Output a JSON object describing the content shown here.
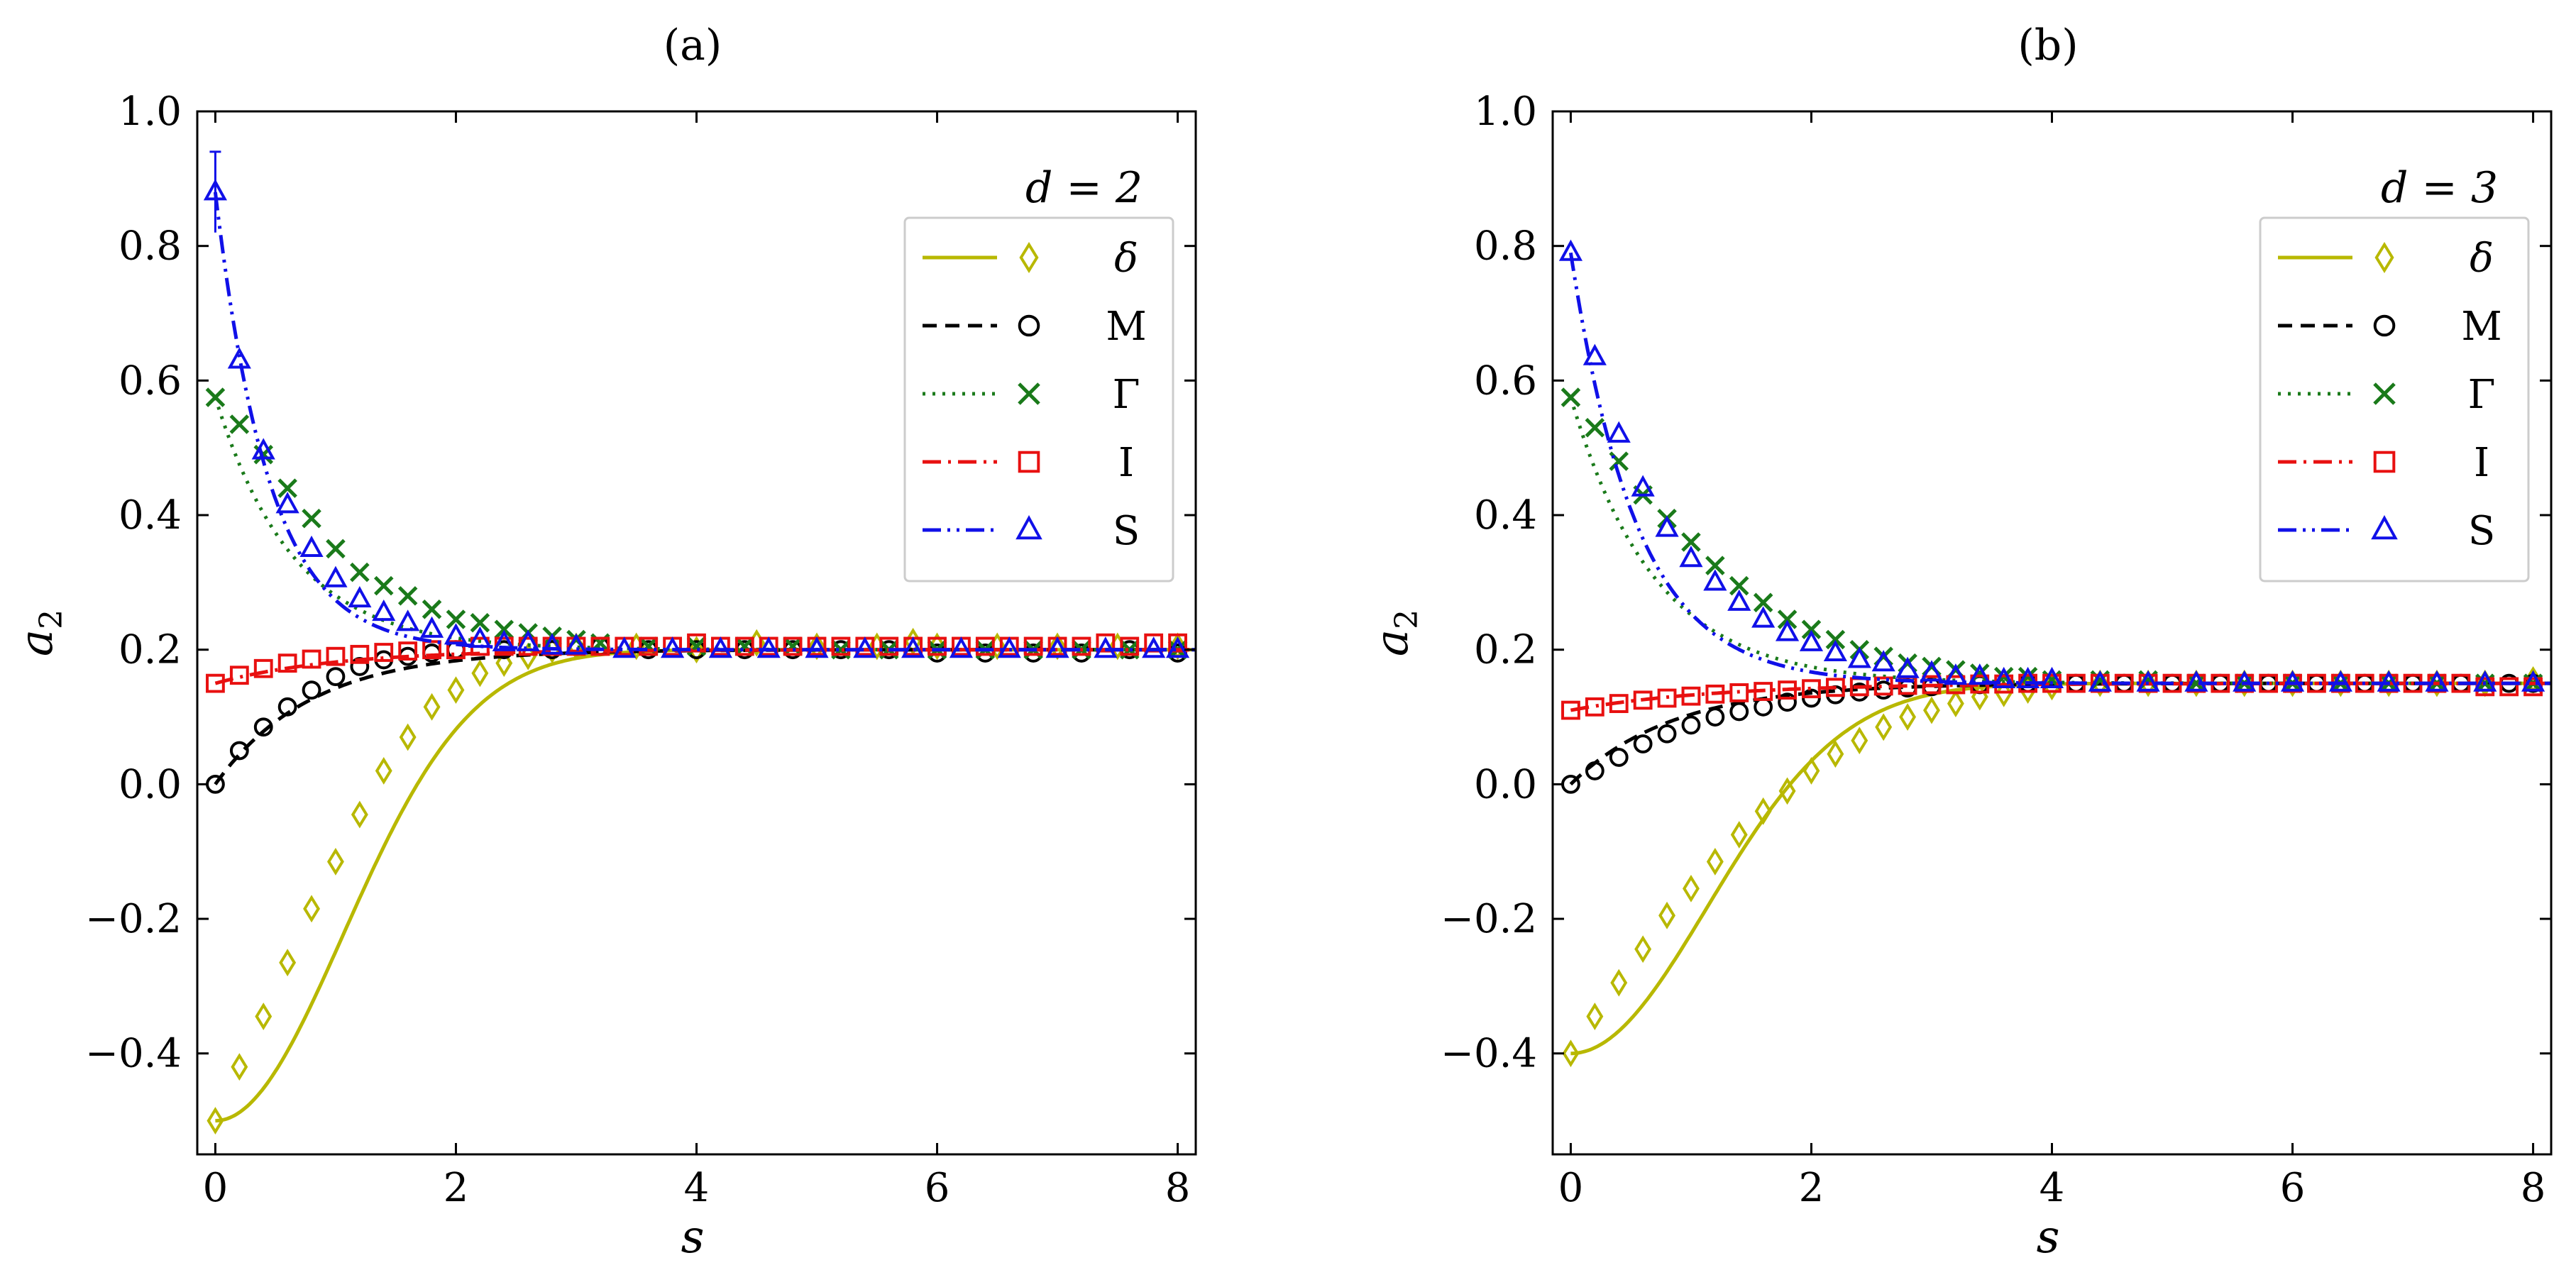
{
  "chart_data": [
    {
      "type": "line",
      "panel_label": "(a)",
      "xlabel": "s",
      "ylabel": "a2",
      "xlim": [
        -0.15,
        8.15
      ],
      "ylim": [
        -0.55,
        1.0
      ],
      "xticks": [
        "0",
        "2",
        "4",
        "6",
        "8"
      ],
      "yticks": [
        "−0.4",
        "−0.2",
        "0.0",
        "0.2",
        "0.4",
        "0.6",
        "0.8",
        "1.0"
      ],
      "legend": {
        "title": "d = 2",
        "position": "top-right"
      },
      "asymptote": 0.2,
      "series": [
        {
          "name": "δ",
          "color": "#b8b800",
          "line": "solid",
          "marker": "diamond",
          "curve": {
            "a0": -0.5,
            "kind": "gauss",
            "tau": 1.5
          },
          "x": [
            0,
            0.2,
            0.4,
            0.6,
            0.8,
            1.0,
            1.2,
            1.4,
            1.6,
            1.8,
            2.0,
            2.2,
            2.4,
            2.6,
            2.8,
            3.0,
            3.5,
            4.0,
            4.5,
            5.0,
            5.5,
            5.8,
            6.0,
            6.5,
            7.0,
            7.5,
            8.0
          ],
          "y": [
            -0.5,
            -0.42,
            -0.345,
            -0.265,
            -0.185,
            -0.115,
            -0.045,
            0.02,
            0.07,
            0.115,
            0.14,
            0.165,
            0.18,
            0.19,
            0.2,
            0.205,
            0.205,
            0.2,
            0.21,
            0.205,
            0.205,
            0.212,
            0.205,
            0.205,
            0.205,
            0.205,
            0.205
          ]
        },
        {
          "name": "M",
          "color": "#000000",
          "line": "dashed",
          "marker": "circle",
          "curve": {
            "a0": 0.0,
            "kind": "exp",
            "tau": 0.8
          },
          "x": [
            0,
            0.2,
            0.4,
            0.6,
            0.8,
            1.0,
            1.2,
            1.4,
            1.6,
            1.8,
            2.0,
            2.4,
            2.8,
            3.2,
            3.6,
            4.0,
            4.4,
            4.8,
            5.2,
            5.6,
            6.0,
            6.4,
            6.8,
            7.2,
            7.6,
            8.0
          ],
          "y": [
            0.0,
            0.05,
            0.085,
            0.115,
            0.14,
            0.16,
            0.175,
            0.185,
            0.19,
            0.195,
            0.2,
            0.2,
            0.2,
            0.205,
            0.2,
            0.2,
            0.2,
            0.2,
            0.2,
            0.2,
            0.195,
            0.195,
            0.195,
            0.195,
            0.2,
            0.195
          ]
        },
        {
          "name": "Γ",
          "color": "#1a7a1a",
          "line": "dotted",
          "marker": "x",
          "curve": {
            "a0": 0.575,
            "kind": "exp",
            "tau": 0.65
          },
          "x": [
            0,
            0.2,
            0.4,
            0.6,
            0.8,
            1.0,
            1.2,
            1.4,
            1.6,
            1.8,
            2.0,
            2.2,
            2.4,
            2.6,
            2.8,
            3.0,
            3.2,
            3.6,
            4.0,
            4.4,
            4.8,
            5.2,
            5.6,
            6.0,
            6.4,
            6.8,
            7.2,
            7.6,
            8.0
          ],
          "y": [
            0.575,
            0.535,
            0.49,
            0.44,
            0.395,
            0.35,
            0.315,
            0.295,
            0.28,
            0.26,
            0.245,
            0.24,
            0.23,
            0.225,
            0.22,
            0.215,
            0.21,
            0.205,
            0.205,
            0.205,
            0.205,
            0.2,
            0.2,
            0.2,
            0.2,
            0.2,
            0.2,
            0.2,
            0.2
          ]
        },
        {
          "name": "I",
          "color": "#e81010",
          "line": "dashdot",
          "marker": "square",
          "curve": {
            "a0": 0.15,
            "kind": "exp",
            "tau": 1.0
          },
          "x": [
            0,
            0.2,
            0.4,
            0.6,
            0.8,
            1.0,
            1.2,
            1.4,
            1.6,
            1.8,
            2.0,
            2.2,
            2.4,
            2.6,
            2.8,
            3.0,
            3.2,
            3.4,
            3.6,
            3.8,
            4.0,
            4.2,
            4.4,
            4.6,
            4.8,
            5.0,
            5.2,
            5.4,
            5.6,
            5.8,
            6.0,
            6.2,
            6.4,
            6.6,
            6.8,
            7.0,
            7.2,
            7.4,
            7.6,
            7.8,
            8.0
          ],
          "y": [
            0.15,
            0.162,
            0.172,
            0.18,
            0.186,
            0.19,
            0.193,
            0.196,
            0.198,
            0.2,
            0.2,
            0.205,
            0.205,
            0.205,
            0.205,
            0.205,
            0.205,
            0.205,
            0.205,
            0.205,
            0.21,
            0.205,
            0.205,
            0.205,
            0.205,
            0.205,
            0.205,
            0.205,
            0.205,
            0.205,
            0.205,
            0.205,
            0.205,
            0.205,
            0.205,
            0.205,
            0.205,
            0.21,
            0.205,
            0.21,
            0.21
          ]
        },
        {
          "name": "S",
          "color": "#1010e8",
          "line": "dashdotdot",
          "marker": "triangle",
          "curve": {
            "a0": 0.88,
            "kind": "exp",
            "tau": 0.45
          },
          "x": [
            0,
            0.2,
            0.4,
            0.6,
            0.8,
            1.0,
            1.2,
            1.4,
            1.6,
            1.8,
            2.0,
            2.2,
            2.4,
            2.6,
            2.8,
            3.0,
            3.4,
            3.8,
            4.2,
            4.6,
            5.0,
            5.4,
            5.8,
            6.2,
            6.6,
            7.0,
            7.4,
            7.8,
            8.0
          ],
          "y": [
            0.88,
            0.63,
            0.495,
            0.415,
            0.35,
            0.305,
            0.275,
            0.255,
            0.24,
            0.23,
            0.22,
            0.215,
            0.21,
            0.21,
            0.205,
            0.205,
            0.2,
            0.2,
            0.2,
            0.2,
            0.2,
            0.2,
            0.2,
            0.2,
            0.2,
            0.2,
            0.2,
            0.2,
            0.2
          ],
          "errorbar": {
            "x": 0,
            "y": 0.88,
            "err": 0.06
          }
        }
      ]
    },
    {
      "type": "line",
      "panel_label": "(b)",
      "xlabel": "s",
      "ylabel": "a2",
      "xlim": [
        -0.15,
        8.15
      ],
      "ylim": [
        -0.55,
        1.0
      ],
      "xticks": [
        "0",
        "2",
        "4",
        "6",
        "8"
      ],
      "yticks": [
        "−0.4",
        "−0.2",
        "0.0",
        "0.2",
        "0.4",
        "0.6",
        "0.8",
        "1.0"
      ],
      "legend": {
        "title": "d = 3",
        "position": "top-right"
      },
      "asymptote": 0.15,
      "series": [
        {
          "name": "δ",
          "color": "#b8b800",
          "line": "solid",
          "marker": "diamond",
          "curve": {
            "a0": -0.4,
            "kind": "gauss",
            "tau": 1.6
          },
          "x": [
            0,
            0.2,
            0.4,
            0.6,
            0.8,
            1.0,
            1.2,
            1.4,
            1.6,
            1.8,
            2.0,
            2.2,
            2.4,
            2.6,
            2.8,
            3.0,
            3.2,
            3.4,
            3.6,
            3.8,
            4.0,
            4.4,
            4.8,
            5.2,
            5.6,
            6.0,
            6.4,
            6.8,
            7.2,
            7.6,
            8.0
          ],
          "y": [
            -0.4,
            -0.345,
            -0.295,
            -0.245,
            -0.195,
            -0.155,
            -0.115,
            -0.075,
            -0.04,
            -0.01,
            0.02,
            0.045,
            0.065,
            0.085,
            0.1,
            0.11,
            0.12,
            0.13,
            0.135,
            0.14,
            0.145,
            0.15,
            0.15,
            0.15,
            0.15,
            0.15,
            0.15,
            0.15,
            0.15,
            0.15,
            0.155
          ]
        },
        {
          "name": "M",
          "color": "#000000",
          "line": "dashed",
          "marker": "circle",
          "curve": {
            "a0": 0.0,
            "kind": "exp",
            "tau": 0.85
          },
          "x": [
            0,
            0.2,
            0.4,
            0.6,
            0.8,
            1.0,
            1.2,
            1.4,
            1.6,
            1.8,
            2.0,
            2.2,
            2.4,
            2.6,
            2.8,
            3.0,
            3.4,
            3.8,
            4.2,
            4.6,
            5.0,
            5.4,
            5.8,
            6.2,
            6.6,
            7.0,
            7.4,
            7.8,
            8.0
          ],
          "y": [
            0.0,
            0.02,
            0.04,
            0.06,
            0.075,
            0.088,
            0.1,
            0.108,
            0.115,
            0.122,
            0.128,
            0.133,
            0.137,
            0.14,
            0.143,
            0.145,
            0.148,
            0.15,
            0.15,
            0.15,
            0.15,
            0.15,
            0.15,
            0.15,
            0.15,
            0.15,
            0.15,
            0.15,
            0.15
          ]
        },
        {
          "name": "Γ",
          "color": "#1a7a1a",
          "line": "dotted",
          "marker": "x",
          "curve": {
            "a0": 0.575,
            "kind": "exp",
            "tau": 0.7
          },
          "x": [
            0,
            0.2,
            0.4,
            0.6,
            0.8,
            1.0,
            1.2,
            1.4,
            1.6,
            1.8,
            2.0,
            2.2,
            2.4,
            2.6,
            2.8,
            3.0,
            3.2,
            3.4,
            3.6,
            3.8,
            4.0,
            4.4,
            4.8,
            5.2,
            5.6,
            6.0,
            6.4,
            6.8,
            7.2,
            7.6,
            8.0
          ],
          "y": [
            0.575,
            0.53,
            0.48,
            0.43,
            0.395,
            0.36,
            0.325,
            0.295,
            0.27,
            0.245,
            0.23,
            0.215,
            0.2,
            0.19,
            0.18,
            0.175,
            0.17,
            0.165,
            0.16,
            0.16,
            0.155,
            0.155,
            0.155,
            0.15,
            0.15,
            0.15,
            0.15,
            0.15,
            0.15,
            0.15,
            0.15
          ]
        },
        {
          "name": "I",
          "color": "#e81010",
          "line": "dashdot",
          "marker": "square",
          "curve": {
            "a0": 0.11,
            "kind": "exp",
            "tau": 1.2
          },
          "x": [
            0,
            0.2,
            0.4,
            0.6,
            0.8,
            1.0,
            1.2,
            1.4,
            1.6,
            1.8,
            2.0,
            2.2,
            2.4,
            2.6,
            2.8,
            3.0,
            3.2,
            3.4,
            3.6,
            3.8,
            4.0,
            4.2,
            4.4,
            4.6,
            4.8,
            5.0,
            5.2,
            5.4,
            5.6,
            5.8,
            6.0,
            6.2,
            6.4,
            6.6,
            6.8,
            7.0,
            7.2,
            7.4,
            7.6,
            7.8,
            8.0
          ],
          "y": [
            0.11,
            0.115,
            0.12,
            0.125,
            0.128,
            0.131,
            0.134,
            0.136,
            0.138,
            0.14,
            0.142,
            0.144,
            0.145,
            0.146,
            0.147,
            0.148,
            0.148,
            0.149,
            0.149,
            0.15,
            0.15,
            0.15,
            0.15,
            0.15,
            0.15,
            0.15,
            0.15,
            0.15,
            0.15,
            0.15,
            0.15,
            0.15,
            0.15,
            0.15,
            0.15,
            0.15,
            0.15,
            0.15,
            0.145,
            0.145,
            0.145
          ]
        },
        {
          "name": "S",
          "color": "#1010e8",
          "line": "dashdotdot",
          "marker": "triangle",
          "curve": {
            "a0": 0.79,
            "kind": "exp",
            "tau": 0.55
          },
          "x": [
            0,
            0.2,
            0.4,
            0.6,
            0.8,
            1.0,
            1.2,
            1.4,
            1.6,
            1.8,
            2.0,
            2.2,
            2.4,
            2.6,
            2.8,
            3.0,
            3.2,
            3.4,
            3.6,
            3.8,
            4.0,
            4.4,
            4.8,
            5.2,
            5.6,
            6.0,
            6.4,
            6.8,
            7.2,
            7.6,
            8.0
          ],
          "y": [
            0.79,
            0.635,
            0.52,
            0.44,
            0.38,
            0.335,
            0.3,
            0.27,
            0.245,
            0.225,
            0.21,
            0.195,
            0.185,
            0.18,
            0.17,
            0.165,
            0.16,
            0.16,
            0.155,
            0.155,
            0.155,
            0.15,
            0.15,
            0.15,
            0.15,
            0.15,
            0.15,
            0.15,
            0.15,
            0.15,
            0.15
          ]
        }
      ]
    }
  ]
}
